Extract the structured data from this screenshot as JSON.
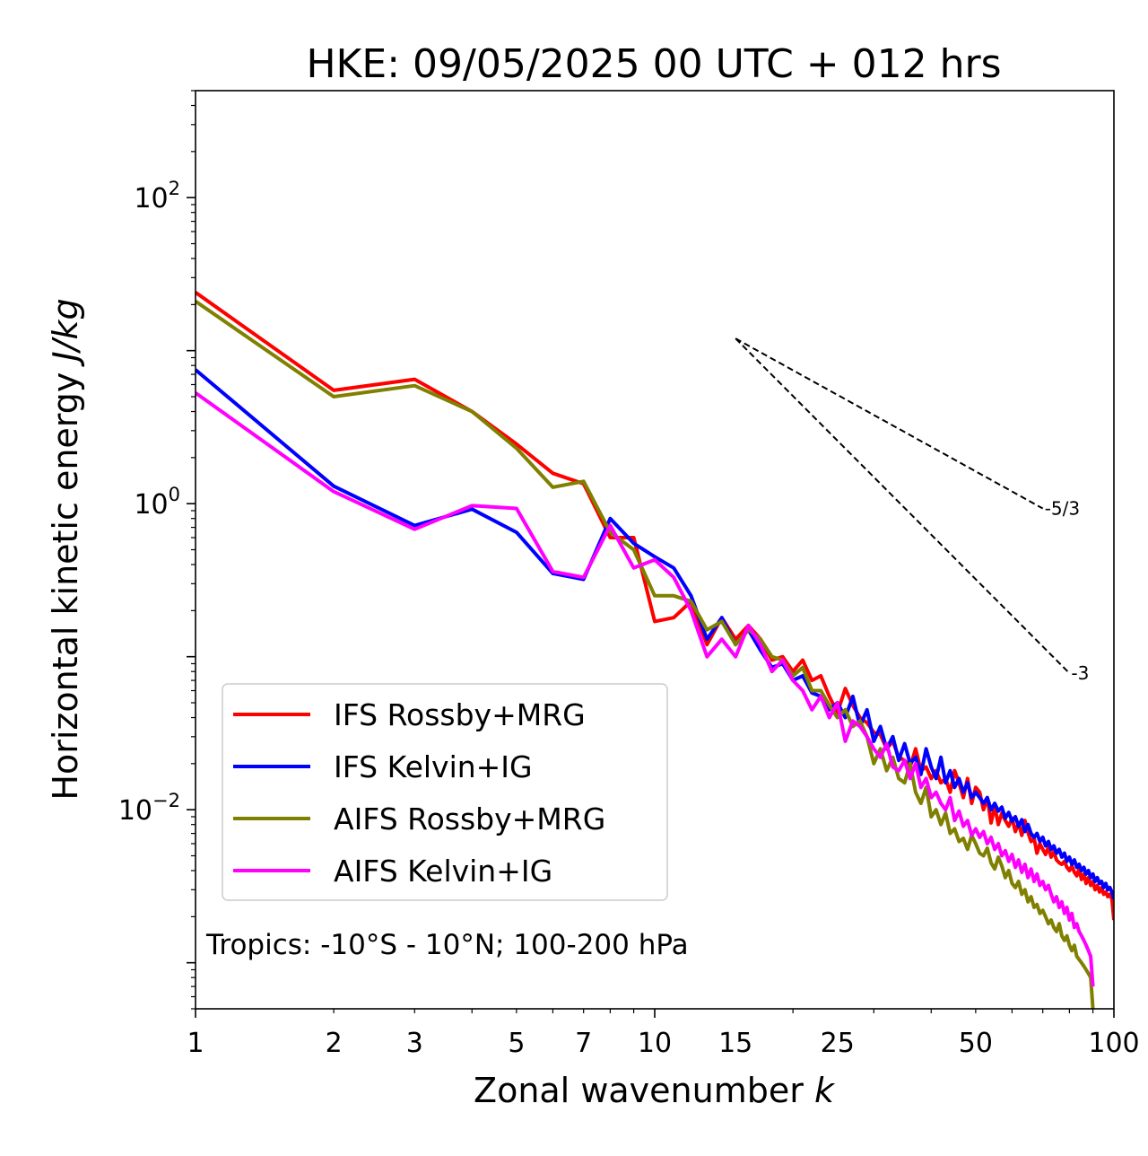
{
  "chart_data": {
    "type": "line",
    "title": "HKE: 09/05/2025 00 UTC + 012 hrs",
    "xlabel_text": "Zonal wavenumber ",
    "xlabel_var": "k",
    "ylabel_text": "Horizontal kinetic energy ",
    "ylabel_unit": "J/kg",
    "x_scale": "log",
    "y_scale": "log",
    "xlim": [
      1,
      100
    ],
    "ylim": [
      0.0005,
      500
    ],
    "x_ticks": [
      {
        "value": 1,
        "label": "1"
      },
      {
        "value": 2,
        "label": "2"
      },
      {
        "value": 3,
        "label": "3"
      },
      {
        "value": 5,
        "label": "5"
      },
      {
        "value": 7,
        "label": "7"
      },
      {
        "value": 10,
        "label": "10"
      },
      {
        "value": 15,
        "label": "15"
      },
      {
        "value": 25,
        "label": "25"
      },
      {
        "value": 50,
        "label": "50"
      },
      {
        "value": 100,
        "label": "100"
      }
    ],
    "y_ticks": [
      {
        "value": 100,
        "base": "10",
        "exp": "2"
      },
      {
        "value": 1,
        "base": "10",
        "exp": "0"
      },
      {
        "value": 0.01,
        "base": "10",
        "exp": "−2"
      }
    ],
    "annotation": "Tropics: -10°S - 10°N; 100-200 hPa",
    "legend_position": "lower-left",
    "series": [
      {
        "name": "IFS Rossby+MRG",
        "color": "#ff0000",
        "x": [
          1,
          2,
          3,
          4,
          5,
          6,
          7,
          8,
          9,
          10,
          11,
          12,
          13,
          14,
          15,
          16,
          17,
          18,
          19,
          20,
          21,
          22,
          23,
          24,
          25,
          26,
          27,
          28,
          29,
          30,
          31,
          32,
          33,
          34,
          35,
          36,
          37,
          38,
          39,
          40,
          41,
          42,
          43,
          44,
          45,
          46,
          47,
          48,
          49,
          50,
          51,
          52,
          53,
          54,
          55,
          56,
          57,
          58,
          59,
          60,
          61,
          62,
          63,
          64,
          65,
          66,
          67,
          68,
          69,
          70,
          71,
          72,
          73,
          74,
          75,
          76,
          77,
          78,
          79,
          80,
          81,
          82,
          83,
          84,
          85,
          86,
          87,
          88,
          89,
          90,
          91,
          92,
          93,
          94,
          95,
          96,
          97,
          98,
          99,
          100
        ],
        "y": [
          24,
          5.5,
          6.5,
          4,
          2.45,
          1.58,
          1.35,
          0.6,
          0.6,
          0.17,
          0.18,
          0.23,
          0.12,
          0.18,
          0.13,
          0.16,
          0.13,
          0.095,
          0.1,
          0.08,
          0.095,
          0.07,
          0.075,
          0.055,
          0.043,
          0.062,
          0.048,
          0.04,
          0.037,
          0.032,
          0.031,
          0.025,
          0.028,
          0.022,
          0.021,
          0.019,
          0.025,
          0.018,
          0.019,
          0.016,
          0.018,
          0.015,
          0.016,
          0.013,
          0.018,
          0.015,
          0.012,
          0.016,
          0.011,
          0.014,
          0.013,
          0.01,
          0.012,
          0.0082,
          0.0105,
          0.008,
          0.0095,
          0.0085,
          0.0078,
          0.0088,
          0.0072,
          0.0082,
          0.0068,
          0.0085,
          0.0071,
          0.0062,
          0.0065,
          0.0052,
          0.006,
          0.0055,
          0.0051,
          0.0057,
          0.0049,
          0.0053,
          0.0047,
          0.0045,
          0.0044,
          0.0046,
          0.0042,
          0.004,
          0.0043,
          0.0039,
          0.0037,
          0.0041,
          0.0035,
          0.0038,
          0.0033,
          0.0036,
          0.0032,
          0.0034,
          0.003,
          0.0032,
          0.0029,
          0.0031,
          0.0028,
          0.0029,
          0.0027,
          0.0028,
          0.0026,
          0.0019
        ]
      },
      {
        "name": "IFS Kelvin+IG",
        "color": "#0000ff",
        "x": [
          1,
          2,
          3,
          4,
          5,
          6,
          7,
          8,
          9,
          10,
          11,
          12,
          13,
          14,
          15,
          16,
          17,
          18,
          19,
          20,
          21,
          22,
          23,
          24,
          25,
          26,
          27,
          28,
          29,
          30,
          31,
          32,
          33,
          34,
          35,
          36,
          37,
          38,
          39,
          40,
          41,
          42,
          43,
          44,
          45,
          46,
          47,
          48,
          49,
          50,
          51,
          52,
          53,
          54,
          55,
          56,
          57,
          58,
          59,
          60,
          61,
          62,
          63,
          64,
          65,
          66,
          67,
          68,
          69,
          70,
          71,
          72,
          73,
          74,
          75,
          76,
          77,
          78,
          79,
          80,
          81,
          82,
          83,
          84,
          85,
          86,
          87,
          88,
          89,
          90,
          91,
          92,
          93,
          94,
          95,
          96,
          97,
          98,
          99,
          100
        ],
        "y": [
          7.5,
          1.3,
          0.72,
          0.92,
          0.65,
          0.35,
          0.32,
          0.8,
          0.55,
          0.45,
          0.38,
          0.25,
          0.13,
          0.18,
          0.12,
          0.15,
          0.11,
          0.085,
          0.09,
          0.07,
          0.075,
          0.058,
          0.055,
          0.045,
          0.05,
          0.04,
          0.055,
          0.035,
          0.045,
          0.028,
          0.035,
          0.025,
          0.03,
          0.021,
          0.027,
          0.02,
          0.022,
          0.017,
          0.025,
          0.019,
          0.016,
          0.022,
          0.015,
          0.018,
          0.014,
          0.016,
          0.013,
          0.015,
          0.012,
          0.013,
          0.012,
          0.011,
          0.012,
          0.01,
          0.011,
          0.0098,
          0.0104,
          0.0088,
          0.0096,
          0.0084,
          0.009,
          0.0078,
          0.0086,
          0.0072,
          0.008,
          0.007,
          0.0066,
          0.007,
          0.0062,
          0.0066,
          0.0058,
          0.0062,
          0.0055,
          0.0058,
          0.0052,
          0.0055,
          0.0049,
          0.0052,
          0.0046,
          0.0049,
          0.0044,
          0.0047,
          0.0042,
          0.0044,
          0.004,
          0.0042,
          0.0038,
          0.004,
          0.0036,
          0.0038,
          0.0034,
          0.0036,
          0.0033,
          0.0034,
          0.0031,
          0.0033,
          0.003,
          0.0031,
          0.0029,
          0.0026
        ]
      },
      {
        "name": "AIFS Rossby+MRG",
        "color": "#808000",
        "x": [
          1,
          2,
          3,
          4,
          5,
          6,
          7,
          8,
          9,
          10,
          11,
          12,
          13,
          14,
          15,
          16,
          17,
          18,
          19,
          20,
          21,
          22,
          23,
          24,
          25,
          26,
          27,
          28,
          29,
          30,
          31,
          32,
          33,
          34,
          35,
          36,
          37,
          38,
          39,
          40,
          41,
          42,
          43,
          44,
          45,
          46,
          47,
          48,
          49,
          50,
          51,
          52,
          53,
          54,
          55,
          56,
          57,
          58,
          59,
          60,
          61,
          62,
          63,
          64,
          65,
          66,
          67,
          68,
          69,
          70,
          71,
          72,
          73,
          74,
          75,
          76,
          77,
          78,
          79,
          80,
          81,
          82,
          83,
          84,
          85,
          86,
          87,
          88,
          89,
          90
        ],
        "y": [
          21,
          5,
          5.9,
          4,
          2.3,
          1.28,
          1.4,
          0.65,
          0.5,
          0.25,
          0.25,
          0.23,
          0.15,
          0.17,
          0.12,
          0.15,
          0.13,
          0.1,
          0.095,
          0.075,
          0.085,
          0.06,
          0.06,
          0.048,
          0.04,
          0.045,
          0.035,
          0.038,
          0.03,
          0.02,
          0.025,
          0.018,
          0.022,
          0.016,
          0.015,
          0.02,
          0.013,
          0.011,
          0.014,
          0.009,
          0.01,
          0.008,
          0.0095,
          0.007,
          0.0075,
          0.0062,
          0.0065,
          0.0055,
          0.0068,
          0.006,
          0.0052,
          0.005,
          0.0056,
          0.0045,
          0.0041,
          0.0049,
          0.0043,
          0.0036,
          0.004,
          0.0033,
          0.0031,
          0.0034,
          0.0028,
          0.003,
          0.0025,
          0.0027,
          0.0023,
          0.0024,
          0.0021,
          0.0022,
          0.002,
          0.0018,
          0.0019,
          0.0017,
          0.0016,
          0.0018,
          0.0015,
          0.0014,
          0.0015,
          0.0013,
          0.0012,
          0.0013,
          0.0011,
          0.00105,
          0.001,
          0.00095,
          0.0009,
          0.00085,
          0.0008,
          0.0005
        ]
      },
      {
        "name": "AIFS Kelvin+IG",
        "color": "#ff00ff",
        "x": [
          1,
          2,
          3,
          4,
          5,
          6,
          7,
          8,
          9,
          10,
          11,
          12,
          13,
          14,
          15,
          16,
          17,
          18,
          19,
          20,
          21,
          22,
          23,
          24,
          25,
          26,
          27,
          28,
          29,
          30,
          31,
          32,
          33,
          34,
          35,
          36,
          37,
          38,
          39,
          40,
          41,
          42,
          43,
          44,
          45,
          46,
          47,
          48,
          49,
          50,
          51,
          52,
          53,
          54,
          55,
          56,
          57,
          58,
          59,
          60,
          61,
          62,
          63,
          64,
          65,
          66,
          67,
          68,
          69,
          70,
          71,
          72,
          73,
          74,
          75,
          76,
          77,
          78,
          79,
          80,
          81,
          82,
          83,
          84,
          85,
          86,
          87,
          88,
          89,
          90
        ],
        "y": [
          5.3,
          1.2,
          0.68,
          0.97,
          0.93,
          0.36,
          0.33,
          0.72,
          0.38,
          0.43,
          0.33,
          0.2,
          0.1,
          0.13,
          0.1,
          0.16,
          0.12,
          0.08,
          0.095,
          0.07,
          0.06,
          0.045,
          0.055,
          0.04,
          0.05,
          0.028,
          0.038,
          0.035,
          0.03,
          0.025,
          0.022,
          0.027,
          0.019,
          0.018,
          0.021,
          0.016,
          0.02,
          0.014,
          0.016,
          0.012,
          0.013,
          0.011,
          0.01,
          0.012,
          0.0085,
          0.0098,
          0.0078,
          0.0085,
          0.0068,
          0.0075,
          0.0066,
          0.0072,
          0.006,
          0.0066,
          0.0055,
          0.006,
          0.005,
          0.0054,
          0.0046,
          0.0051,
          0.0042,
          0.0047,
          0.0039,
          0.0044,
          0.0036,
          0.0041,
          0.0034,
          0.0038,
          0.0032,
          0.0034,
          0.003,
          0.0032,
          0.0028,
          0.0025,
          0.0027,
          0.0023,
          0.0025,
          0.0021,
          0.0023,
          0.0019,
          0.0021,
          0.0017,
          0.0018,
          0.0016,
          0.0015,
          0.0014,
          0.0013,
          0.0012,
          0.0011,
          0.0007
        ]
      }
    ],
    "reference_lines": [
      {
        "label": "-5/3",
        "x": [
          15,
          70
        ],
        "y": [
          12,
          0.93
        ]
      },
      {
        "label": "-3",
        "x": [
          15,
          80
        ],
        "y": [
          12,
          0.078
        ]
      }
    ]
  }
}
